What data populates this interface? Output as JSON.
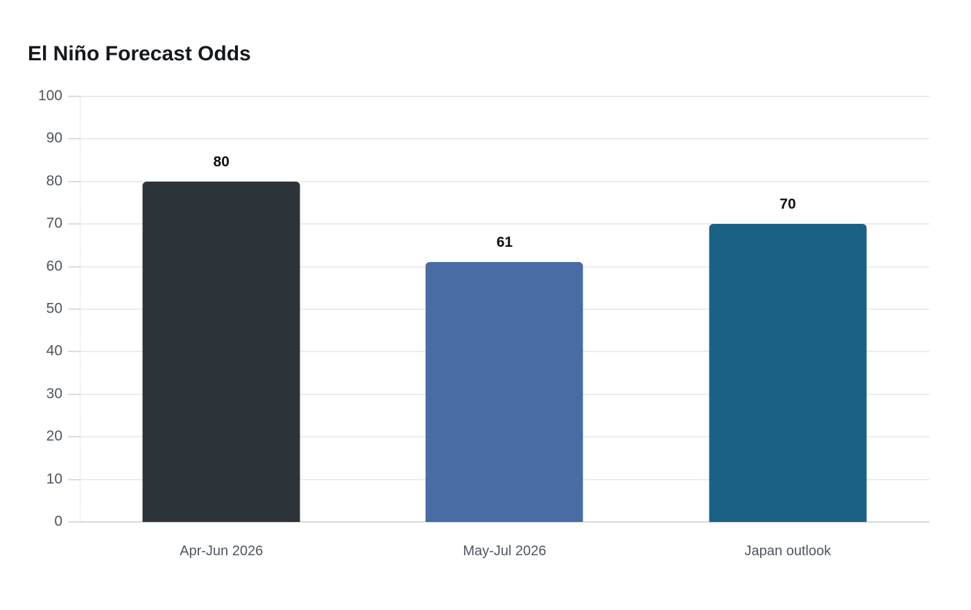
{
  "page": {
    "background": "#ffffff"
  },
  "chart_data": {
    "type": "bar",
    "title": "El Niño Forecast Odds",
    "categories": [
      "Apr-Jun 2026",
      "May-Jul 2026",
      "Japan outlook"
    ],
    "values": [
      80,
      61,
      70
    ],
    "bar_colors": [
      "#2d3439",
      "#4a6ca4",
      "#1b6186"
    ],
    "y_ticks": [
      0,
      10,
      20,
      30,
      40,
      50,
      60,
      70,
      80,
      90,
      100
    ],
    "ylim": [
      0,
      100
    ],
    "xlabel": "",
    "ylabel": "",
    "grid": "horizontal",
    "legend_position": "none",
    "value_labels_shown": true
  },
  "colors": {
    "title_text": "#15181c",
    "y_tick_text": "#4d545c",
    "x_tick_text": "#4e565f",
    "value_label_text": "#0d0f11",
    "gridline": "#ececec",
    "baseline": "#d7d7d7",
    "tick_mark": "#dcdcdc",
    "axis_line": "#cccccc"
  }
}
